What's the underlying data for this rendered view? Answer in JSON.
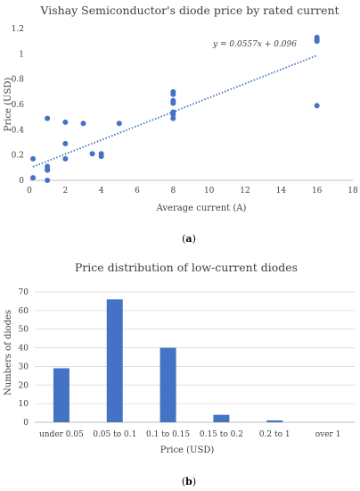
{
  "chart_data": [
    {
      "type": "scatter",
      "panel_label": "a",
      "title": "Vishay Semiconductor's diode price by rated current",
      "xlabel": "Average current (A)",
      "ylabel": "Price (USD)",
      "xlim": [
        0,
        18
      ],
      "ylim": [
        0,
        1.2
      ],
      "x_ticks": [
        0,
        2,
        4,
        6,
        8,
        10,
        12,
        14,
        16,
        18
      ],
      "y_ticks": [
        0,
        0.2,
        0.4,
        0.6,
        0.8,
        1,
        1.2
      ],
      "grid": false,
      "color": "#4472c4",
      "points": [
        {
          "x": 0.2,
          "y": 0.17
        },
        {
          "x": 0.2,
          "y": 0.02
        },
        {
          "x": 1,
          "y": 0.49
        },
        {
          "x": 1,
          "y": 0.11
        },
        {
          "x": 1,
          "y": 0.09
        },
        {
          "x": 1,
          "y": 0.08
        },
        {
          "x": 1,
          "y": 0.0
        },
        {
          "x": 2,
          "y": 0.46
        },
        {
          "x": 2,
          "y": 0.29
        },
        {
          "x": 2,
          "y": 0.17
        },
        {
          "x": 3,
          "y": 0.45
        },
        {
          "x": 3.5,
          "y": 0.21
        },
        {
          "x": 4,
          "y": 0.21
        },
        {
          "x": 4,
          "y": 0.19
        },
        {
          "x": 5,
          "y": 0.45
        },
        {
          "x": 8,
          "y": 0.7
        },
        {
          "x": 8,
          "y": 0.68
        },
        {
          "x": 8,
          "y": 0.63
        },
        {
          "x": 8,
          "y": 0.61
        },
        {
          "x": 8,
          "y": 0.54
        },
        {
          "x": 8,
          "y": 0.52
        },
        {
          "x": 8,
          "y": 0.49
        },
        {
          "x": 16,
          "y": 1.13
        },
        {
          "x": 16,
          "y": 1.11
        },
        {
          "x": 16,
          "y": 1.1
        },
        {
          "x": 16,
          "y": 0.59
        }
      ],
      "trendline": {
        "type": "linear",
        "slope": 0.0557,
        "intercept": 0.096,
        "x_range": [
          0.2,
          16
        ],
        "equation_label": "y = 0.0557x + 0.096",
        "style": "dotted"
      }
    },
    {
      "type": "bar",
      "panel_label": "b",
      "title": "Price distribution of low-current diodes",
      "xlabel": "Price (USD)",
      "ylabel": "Numbers of diodes",
      "ylim": [
        0,
        70
      ],
      "y_ticks": [
        0,
        10,
        20,
        30,
        40,
        50,
        60,
        70
      ],
      "grid": true,
      "color": "#4472c4",
      "categories": [
        "under 0.05",
        "0.05 to 0.1",
        "0.1 to 0.15",
        "0.15 to 0.2",
        "0.2 to 1",
        "over 1"
      ],
      "values": [
        29,
        66,
        40,
        4,
        1,
        0
      ]
    }
  ]
}
